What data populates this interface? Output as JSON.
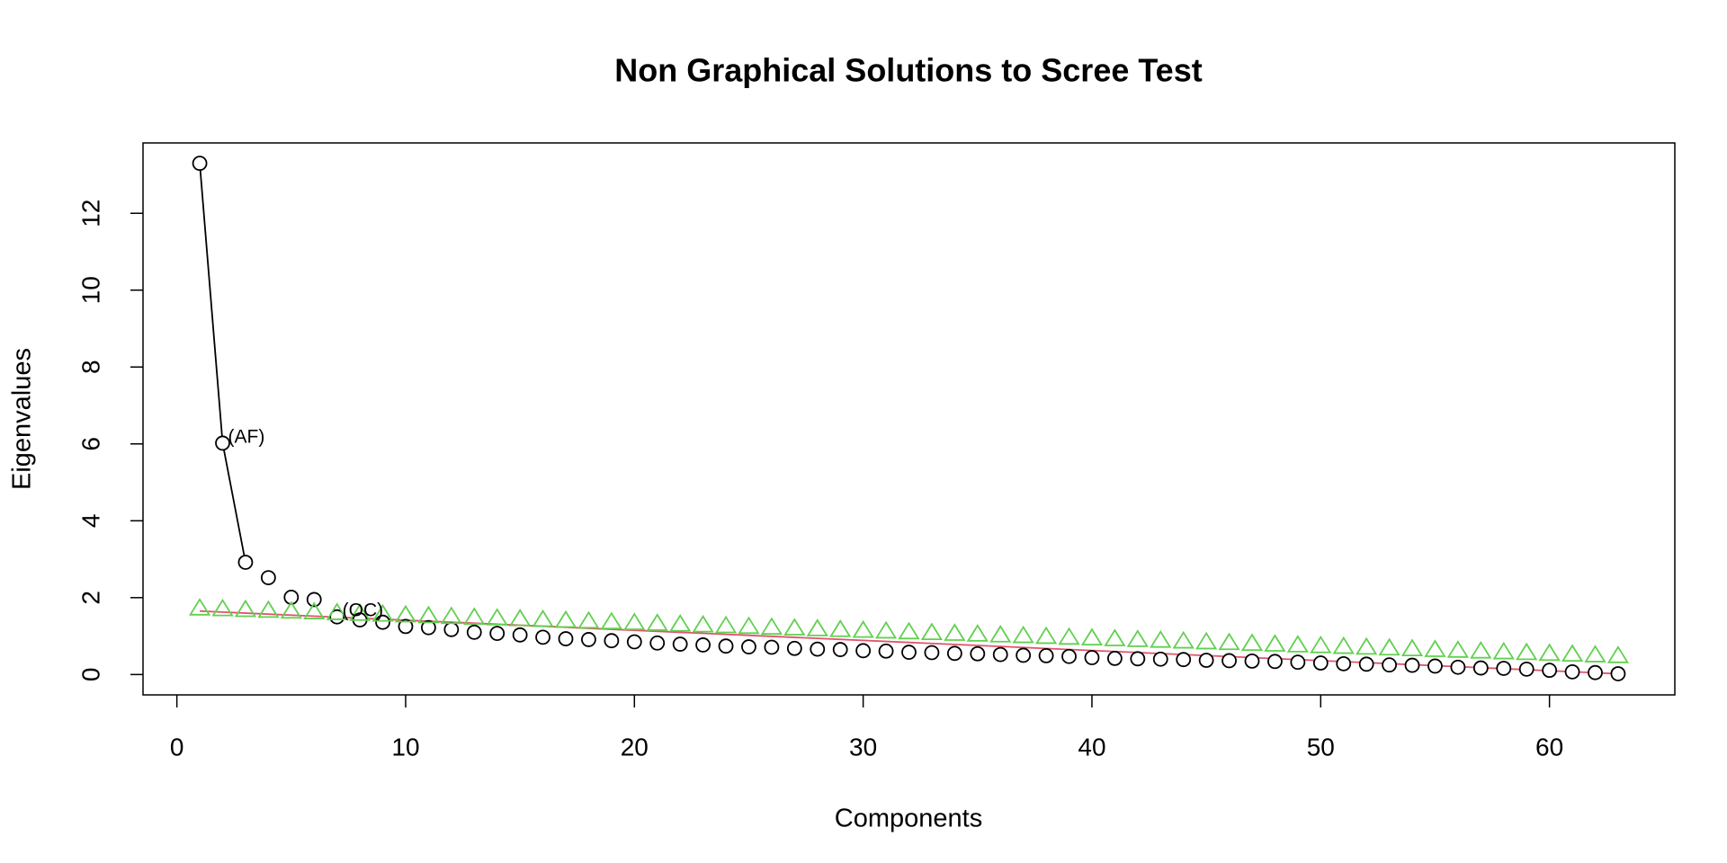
{
  "chart_data": {
    "type": "scatter",
    "title": "Non Graphical Solutions to Scree Test",
    "xlabel": "Components",
    "ylabel": "Eigenvalues",
    "x": [
      1,
      2,
      3,
      4,
      5,
      6,
      7,
      8,
      9,
      10,
      11,
      12,
      13,
      14,
      15,
      16,
      17,
      18,
      19,
      20,
      21,
      22,
      23,
      24,
      25,
      26,
      27,
      28,
      29,
      30,
      31,
      32,
      33,
      34,
      35,
      36,
      37,
      38,
      39,
      40,
      41,
      42,
      43,
      44,
      45,
      46,
      47,
      48,
      49,
      50,
      51,
      52,
      53,
      54,
      55,
      56,
      57,
      58,
      59,
      60,
      61,
      62,
      63
    ],
    "series": [
      {
        "color": "#000000",
        "marker": "circle",
        "values": [
          13.3,
          6.02,
          2.92,
          2.52,
          2.01,
          1.95,
          1.5,
          1.42,
          1.36,
          1.25,
          1.22,
          1.17,
          1.1,
          1.07,
          1.03,
          0.97,
          0.93,
          0.91,
          0.88,
          0.85,
          0.82,
          0.79,
          0.77,
          0.74,
          0.72,
          0.71,
          0.68,
          0.66,
          0.65,
          0.62,
          0.61,
          0.58,
          0.57,
          0.55,
          0.54,
          0.52,
          0.5,
          0.49,
          0.47,
          0.44,
          0.42,
          0.41,
          0.4,
          0.39,
          0.37,
          0.36,
          0.35,
          0.34,
          0.32,
          0.3,
          0.28,
          0.27,
          0.25,
          0.24,
          0.22,
          0.19,
          0.17,
          0.16,
          0.14,
          0.11,
          0.07,
          0.05,
          0.02
        ]
      },
      {
        "color": "#61d04f",
        "marker": "triangle",
        "values": [
          1.72,
          1.7,
          1.68,
          1.66,
          1.64,
          1.62,
          1.6,
          1.58,
          1.56,
          1.54,
          1.52,
          1.5,
          1.48,
          1.46,
          1.44,
          1.42,
          1.4,
          1.38,
          1.36,
          1.34,
          1.32,
          1.3,
          1.28,
          1.26,
          1.24,
          1.22,
          1.2,
          1.18,
          1.16,
          1.14,
          1.12,
          1.1,
          1.08,
          1.06,
          1.04,
          1.02,
          1.0,
          0.98,
          0.96,
          0.94,
          0.92,
          0.9,
          0.88,
          0.86,
          0.84,
          0.82,
          0.8,
          0.78,
          0.76,
          0.74,
          0.72,
          0.7,
          0.68,
          0.66,
          0.64,
          0.62,
          0.6,
          0.58,
          0.56,
          0.54,
          0.52,
          0.5,
          0.48
        ]
      }
    ],
    "lines": [
      {
        "color": "#000000",
        "x": [
          1,
          2,
          3
        ],
        "values": [
          13.3,
          6.02,
          2.92
        ]
      },
      {
        "color": "#df536b",
        "x": [
          1,
          63
        ],
        "values": [
          1.65,
          0.02
        ]
      }
    ],
    "annotations": [
      {
        "text": "(AF)",
        "color": "#2297e6",
        "x": 2,
        "y": 6.02
      },
      {
        "text": "(OC)",
        "color": "#df536b",
        "x": 7,
        "y": 1.5
      }
    ],
    "xlim": [
      -1.48,
      65.48
    ],
    "ylim": [
      -0.53,
      13.83
    ],
    "xticks": [
      0,
      10,
      20,
      30,
      40,
      50,
      60
    ],
    "yticks": [
      0,
      2,
      4,
      6,
      8,
      10,
      12
    ]
  }
}
